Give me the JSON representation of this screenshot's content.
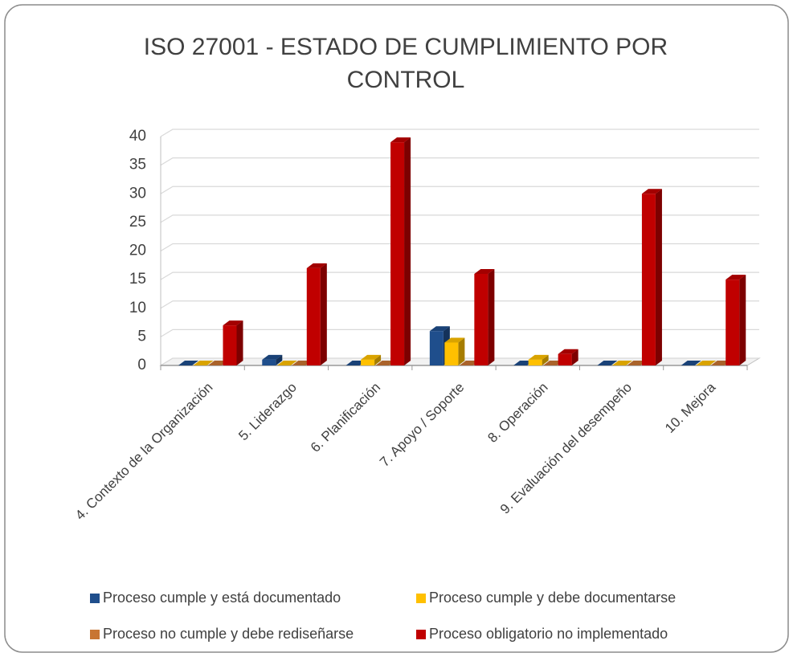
{
  "chart_data": {
    "type": "bar3d",
    "title": [
      "ISO 27001 - ESTADO DE CUMPLIMIENTO POR",
      "CONTROL"
    ],
    "categories": [
      "4. Contexto de la Organización",
      "5. Liderazgo",
      "6. Planificación",
      "7. Apoyo / Soporte",
      "8. Operación",
      "9. Evaluación del desempeño",
      "10. Mejora"
    ],
    "series": [
      {
        "name": "Proceso cumple y está documentado",
        "color": "#1f4e8c",
        "values": [
          0,
          1,
          0,
          6,
          0,
          0,
          0
        ]
      },
      {
        "name": "Proceso cumple y debe documentarse",
        "color": "#ffc000",
        "values": [
          0,
          0,
          1,
          4,
          1,
          0,
          0
        ]
      },
      {
        "name": "Proceso no cumple y debe rediseñarse",
        "color": "#c87533",
        "values": [
          0,
          0,
          0,
          0,
          0,
          0,
          0
        ]
      },
      {
        "name": "Proceso obligatorio no implementado",
        "color": "#c00000",
        "values": [
          7,
          17,
          39,
          16,
          2,
          30,
          15
        ]
      }
    ],
    "ylim": [
      0,
      40
    ],
    "yticks": [
      0,
      5,
      10,
      15,
      20,
      25,
      30,
      35,
      40
    ],
    "grid": true
  }
}
